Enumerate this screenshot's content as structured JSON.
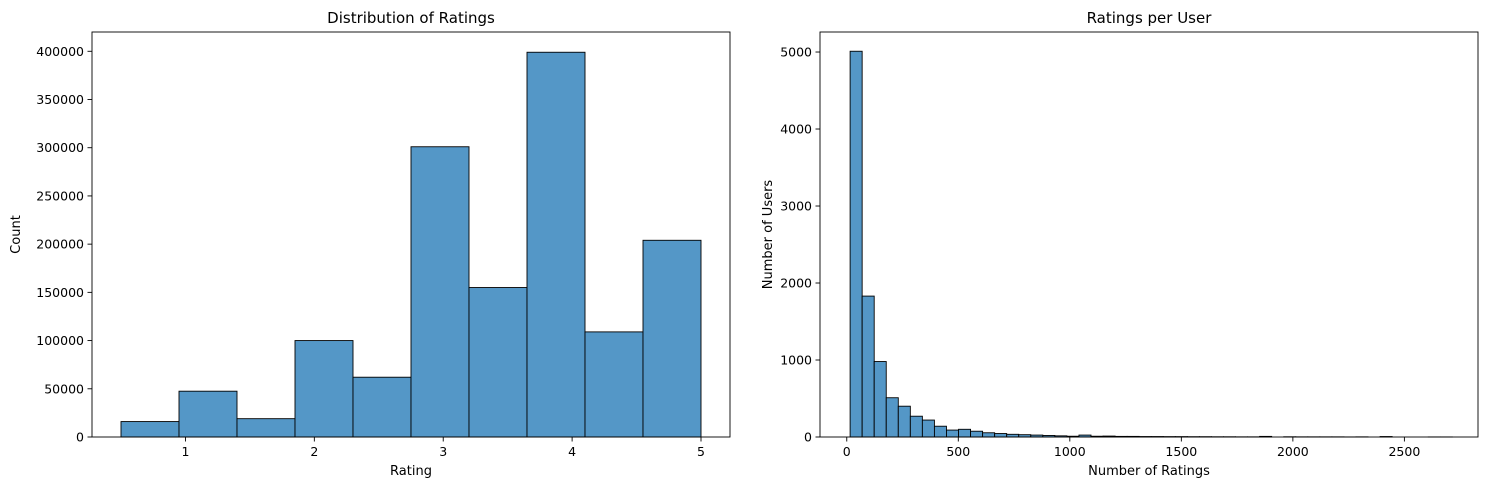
{
  "chart_data": [
    {
      "type": "bar",
      "title": "Distribution of Ratings",
      "xlabel": "Rating",
      "ylabel": "Count",
      "xlim": [
        0.275,
        5.225
      ],
      "ylim": [
        0,
        420000
      ],
      "xticks": [
        1,
        2,
        3,
        4,
        5
      ],
      "xtick_labels": [
        "1",
        "2",
        "3",
        "4",
        "5"
      ],
      "yticks": [
        0,
        50000,
        100000,
        150000,
        200000,
        250000,
        300000,
        350000,
        400000
      ],
      "ytick_labels": [
        "0",
        "50000",
        "100000",
        "150000",
        "200000",
        "250000",
        "300000",
        "350000",
        "400000"
      ],
      "bin_edges": [
        0.5,
        0.95,
        1.4,
        1.85,
        2.3,
        2.75,
        3.2,
        3.65,
        4.1,
        4.55,
        5.0
      ],
      "counts": [
        16000,
        47500,
        19000,
        100000,
        62000,
        301000,
        155000,
        399000,
        109000,
        204000
      ],
      "bar_color": "#5497c7",
      "edge_color": "#000000",
      "grid": false
    },
    {
      "type": "bar",
      "title": "Ratings per User",
      "xlabel": "Number of Ratings",
      "ylabel": "Number of Users",
      "xlim": [
        -120,
        2830
      ],
      "ylim": [
        0,
        5260
      ],
      "xticks": [
        0,
        500,
        1000,
        1500,
        2000,
        2500
      ],
      "xtick_labels": [
        "0",
        "500",
        "1000",
        "1500",
        "2000",
        "2500"
      ],
      "yticks": [
        0,
        1000,
        2000,
        3000,
        4000,
        5000
      ],
      "ytick_labels": [
        "0",
        "1000",
        "2000",
        "3000",
        "4000",
        "5000"
      ],
      "bin_start": 15,
      "bin_width": 54,
      "counts": [
        5010,
        1830,
        980,
        510,
        400,
        270,
        220,
        140,
        90,
        100,
        75,
        55,
        45,
        35,
        30,
        25,
        20,
        15,
        10,
        25,
        10,
        12,
        8,
        8,
        6,
        6,
        5,
        5,
        4,
        4,
        3,
        3,
        2,
        2,
        8,
        0,
        3,
        2,
        2,
        2,
        2,
        1,
        2,
        0,
        6,
        0,
        0,
        0,
        1,
        1
      ],
      "bar_color": "#5497c7",
      "edge_color": "#000000",
      "grid": false
    }
  ]
}
